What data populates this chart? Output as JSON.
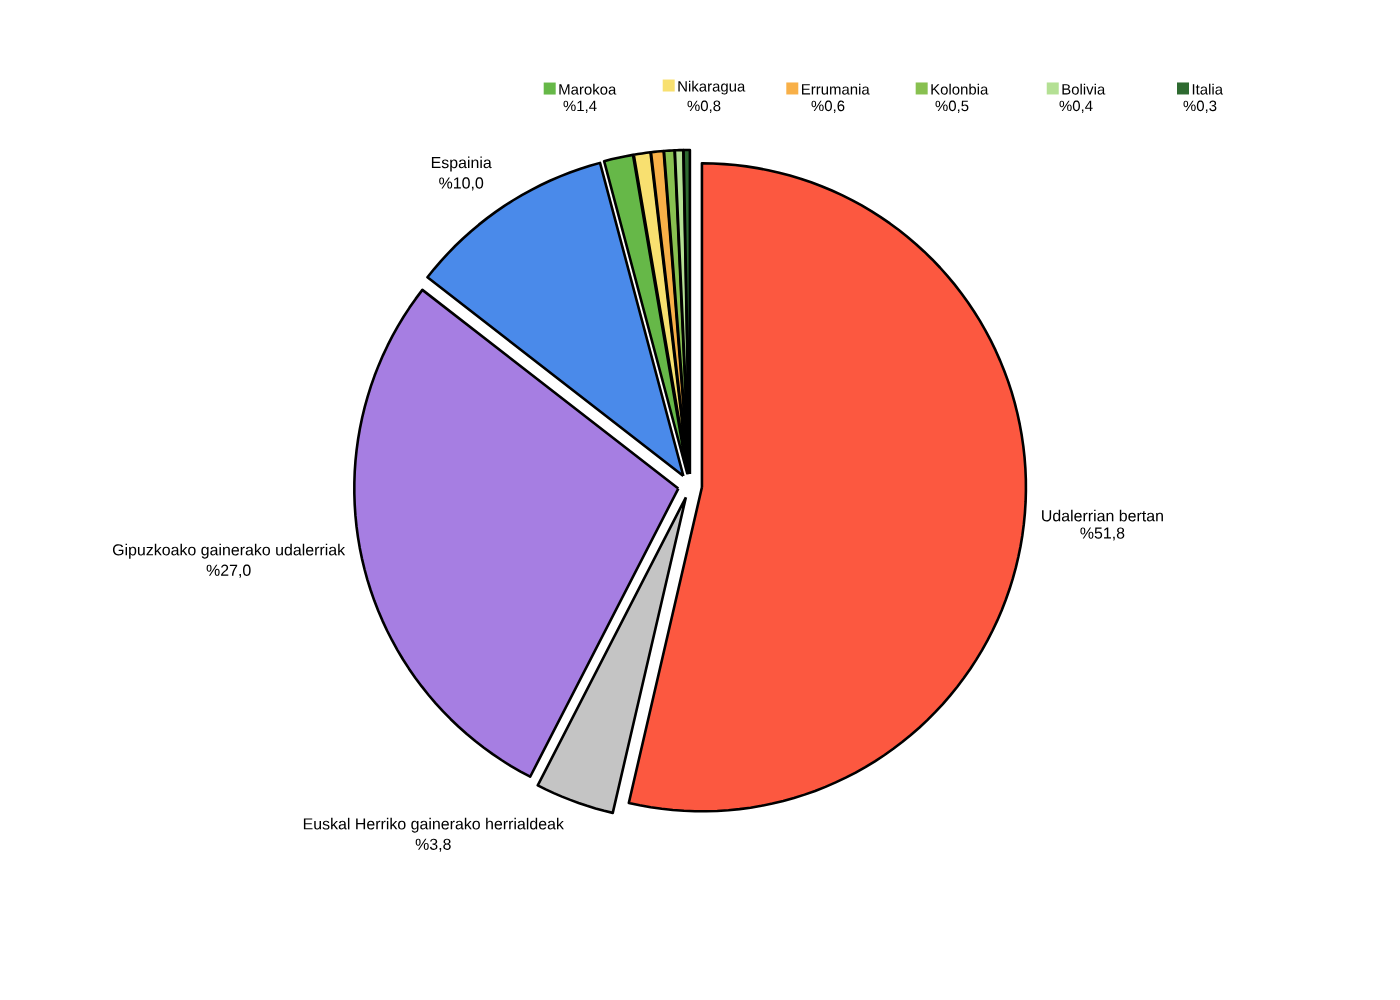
{
  "chart_data": {
    "type": "pie",
    "categories": [
      "Udalerrian bertan",
      "Euskal Herriko gainerako herrialdeak",
      "Gipuzkoako gainerako udalerriak",
      "Espainia",
      "Marokoa",
      "Nikaragua",
      "Errumania",
      "Kolonbia",
      "Bolivia",
      "Italia"
    ],
    "values": [
      51.8,
      3.8,
      27.0,
      10.0,
      1.4,
      0.8,
      0.6,
      0.5,
      0.4,
      0.3
    ],
    "value_labels": [
      "%51,8",
      "%3,8",
      "%27,0",
      "%10,0",
      "%1,4",
      "%0,8",
      "%0,6",
      "%0,5",
      "%0,4",
      "%0,3"
    ],
    "colors": [
      "#fc5840",
      "#c4c4c4",
      "#a67ee2",
      "#4a8aea",
      "#66b848",
      "#f8e070",
      "#f8b048",
      "#88c050",
      "#b4e094",
      "#2e6a30"
    ],
    "legend": "top"
  }
}
